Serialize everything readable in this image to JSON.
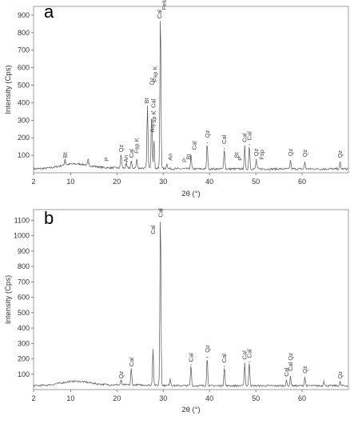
{
  "chart_data": [
    {
      "type": "line",
      "panel_label": "a",
      "xlabel": "2θ (°)",
      "ylabel": "Intensity (Cps)",
      "xlim": [
        2,
        70
      ],
      "ylim": [
        0,
        950
      ],
      "x_ticks": [
        2,
        10,
        20,
        30,
        40,
        50,
        60
      ],
      "y_ticks": [
        100,
        200,
        300,
        400,
        500,
        600,
        700,
        800,
        900
      ],
      "peaks": [
        {
          "x": 8.8,
          "y": 60
        },
        {
          "x": 13.8,
          "y": 55
        },
        {
          "x": 20.9,
          "y": 100
        },
        {
          "x": 22.0,
          "y": 45
        },
        {
          "x": 23.1,
          "y": 60
        },
        {
          "x": 24.3,
          "y": 70
        },
        {
          "x": 26.6,
          "y": 380
        },
        {
          "x": 27.5,
          "y": 350
        },
        {
          "x": 28.0,
          "y": 180
        },
        {
          "x": 29.4,
          "y": 920
        },
        {
          "x": 30.8,
          "y": 50
        },
        {
          "x": 36.0,
          "y": 100
        },
        {
          "x": 39.5,
          "y": 170
        },
        {
          "x": 43.2,
          "y": 140
        },
        {
          "x": 47.6,
          "y": 150
        },
        {
          "x": 48.6,
          "y": 160
        },
        {
          "x": 50.1,
          "y": 75
        },
        {
          "x": 57.5,
          "y": 70
        },
        {
          "x": 60.6,
          "y": 60
        },
        {
          "x": 68.2,
          "y": 60
        }
      ],
      "annotations": [
        {
          "x": 8.8,
          "y": 85,
          "text": "Bt"
        },
        {
          "x": 17.8,
          "y": 65,
          "text": "P"
        },
        {
          "x": 20.9,
          "y": 118,
          "text": "Qz"
        },
        {
          "x": 21.9,
          "y": 60,
          "text": "An"
        },
        {
          "x": 23.1,
          "y": 85,
          "text": "Cal"
        },
        {
          "x": 24.3,
          "y": 110,
          "text": "Fsp K"
        },
        {
          "x": 26.4,
          "y": 395,
          "text": "Bt"
        },
        {
          "x": 27.6,
          "y": 230,
          "text": "An"
        },
        {
          "x": 27.9,
          "y": 370,
          "text": "Cal"
        },
        {
          "x": 28.0,
          "y": 265,
          "text": "Fsp K"
        },
        {
          "x": 27.5,
          "y": 500,
          "text": "Qz"
        },
        {
          "x": 28.2,
          "y": 520,
          "text": "Fsp K"
        },
        {
          "x": 29.2,
          "y": 880,
          "text": "Cal"
        },
        {
          "x": 30.2,
          "y": 930,
          "text": "Feld K"
        },
        {
          "x": 31.5,
          "y": 70,
          "text": "An"
        },
        {
          "x": 34.6,
          "y": 60,
          "text": "P"
        },
        {
          "x": 35.5,
          "y": 75,
          "text": "Bt"
        },
        {
          "x": 36.7,
          "y": 130,
          "text": "Cal"
        },
        {
          "x": 39.5,
          "y": 200,
          "text": "Qz"
        },
        {
          "x": 43.2,
          "y": 165,
          "text": "Cal"
        },
        {
          "x": 45.8,
          "y": 85,
          "text": "Bt"
        },
        {
          "x": 46.6,
          "y": 70,
          "text": "P"
        },
        {
          "x": 47.6,
          "y": 175,
          "text": "Cal"
        },
        {
          "x": 48.6,
          "y": 185,
          "text": "Cal"
        },
        {
          "x": 50.1,
          "y": 95,
          "text": "Qz"
        },
        {
          "x": 51.3,
          "y": 75,
          "text": "Fsp"
        },
        {
          "x": 57.5,
          "y": 95,
          "text": "Qz"
        },
        {
          "x": 60.6,
          "y": 90,
          "text": "Qz"
        },
        {
          "x": 68.2,
          "y": 85,
          "text": "Qz"
        }
      ]
    },
    {
      "type": "line",
      "panel_label": "b",
      "xlabel": "2θ (°)",
      "ylabel": "Intensity (Cps)",
      "xlim": [
        2,
        70
      ],
      "ylim": [
        0,
        1170
      ],
      "x_ticks": [
        2,
        10,
        20,
        30,
        40,
        50,
        60
      ],
      "y_ticks": [
        100,
        200,
        300,
        400,
        500,
        600,
        700,
        800,
        900,
        1000,
        1100
      ],
      "peaks": [
        {
          "x": 20.9,
          "y": 55
        },
        {
          "x": 23.1,
          "y": 130
        },
        {
          "x": 27.8,
          "y": 260
        },
        {
          "x": 29.4,
          "y": 1160
        },
        {
          "x": 31.5,
          "y": 70
        },
        {
          "x": 36.0,
          "y": 160
        },
        {
          "x": 39.5,
          "y": 210
        },
        {
          "x": 43.2,
          "y": 150
        },
        {
          "x": 47.6,
          "y": 170
        },
        {
          "x": 48.6,
          "y": 180
        },
        {
          "x": 56.6,
          "y": 60
        },
        {
          "x": 57.5,
          "y": 85
        },
        {
          "x": 60.6,
          "y": 80
        },
        {
          "x": 64.7,
          "y": 60
        },
        {
          "x": 68.2,
          "y": 50
        }
      ],
      "annotations": [
        {
          "x": 20.9,
          "y": 70,
          "text": "Qz"
        },
        {
          "x": 23.1,
          "y": 150,
          "text": "Cal"
        },
        {
          "x": 27.8,
          "y": 1010,
          "text": "Cal"
        },
        {
          "x": 29.4,
          "y": 1120,
          "text": "Cal"
        },
        {
          "x": 36.0,
          "y": 180,
          "text": "Cal"
        },
        {
          "x": 39.5,
          "y": 240,
          "text": "Qz"
        },
        {
          "x": 43.2,
          "y": 175,
          "text": "Cal"
        },
        {
          "x": 47.6,
          "y": 195,
          "text": "Cal"
        },
        {
          "x": 48.6,
          "y": 205,
          "text": "Cal"
        },
        {
          "x": 56.6,
          "y": 85,
          "text": "Cal"
        },
        {
          "x": 57.5,
          "y": 120,
          "text": "Cal Qz"
        },
        {
          "x": 60.6,
          "y": 105,
          "text": "Qz"
        },
        {
          "x": 68.2,
          "y": 70,
          "text": "Qz"
        }
      ]
    }
  ]
}
